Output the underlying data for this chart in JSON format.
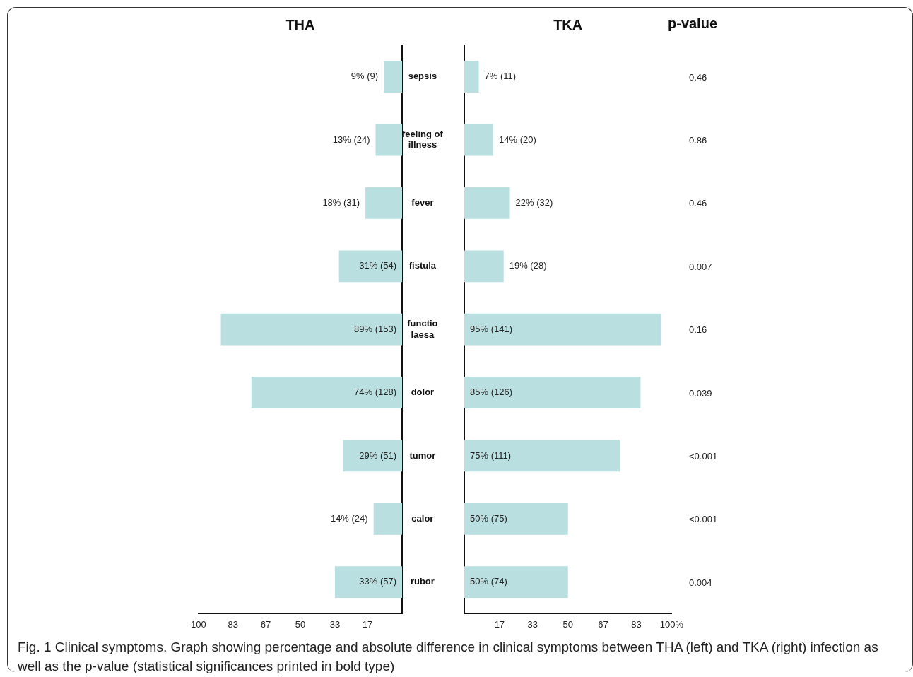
{
  "chart_data": [
    {
      "type": "bar",
      "orientation": "horizontal",
      "title": "THA",
      "categories": [
        "sepsis",
        "feeling of illness",
        "fever",
        "fistula",
        "functio laesa",
        "dolor",
        "tumor",
        "calor",
        "rubor"
      ],
      "series": [
        {
          "color": "#b9dfe0",
          "values": [
            9,
            13,
            18,
            31,
            89,
            74,
            29,
            14,
            33
          ],
          "value_labels": [
            "9% (9)",
            "13% (24)",
            "18% (31)",
            "31% (54)",
            "89% (153)",
            "74% (128)",
            "29% (51)",
            "14% (24)",
            "33% (57)"
          ]
        }
      ],
      "xlim": [
        100,
        0
      ],
      "xticks": [
        100,
        83,
        67,
        50,
        33,
        17
      ],
      "annotations": [
        "Fig. 1 Clinical symptoms. Graph showing percentage and absolute difference in clinical symptoms between THA (left) and TKA (right) infection as well as the p-value (statistical significances printed in bold type)"
      ]
    },
    {
      "type": "bar",
      "orientation": "horizontal",
      "title": "TKA",
      "categories": [
        null,
        null,
        null,
        null,
        null,
        null,
        null,
        null,
        null
      ],
      "tick_labels": "x",
      "series": [
        {
          "color": "#b9dfe0",
          "values": [
            7,
            14,
            22,
            19,
            95,
            85,
            75,
            50,
            50
          ],
          "value_labels": [
            "7% (11)",
            "14% (20)",
            "22% (32)",
            "19% (28)",
            "95% (141)",
            "85% (126)",
            "75% (111)",
            "50% (75)",
            "50% (74)"
          ]
        }
      ],
      "xlim": [
        0,
        100
      ],
      "xticks": [
        17,
        33,
        50,
        67,
        83,
        {
          "value": 100,
          "label": "100%"
        }
      ]
    },
    {
      "type": "other",
      "title": "p-value",
      "annotations": [
        "0.46",
        "0.86",
        "0.46",
        "0.007",
        "0.16",
        "0.039",
        "<0.001",
        "<0.001",
        "0.004"
      ]
    }
  ]
}
